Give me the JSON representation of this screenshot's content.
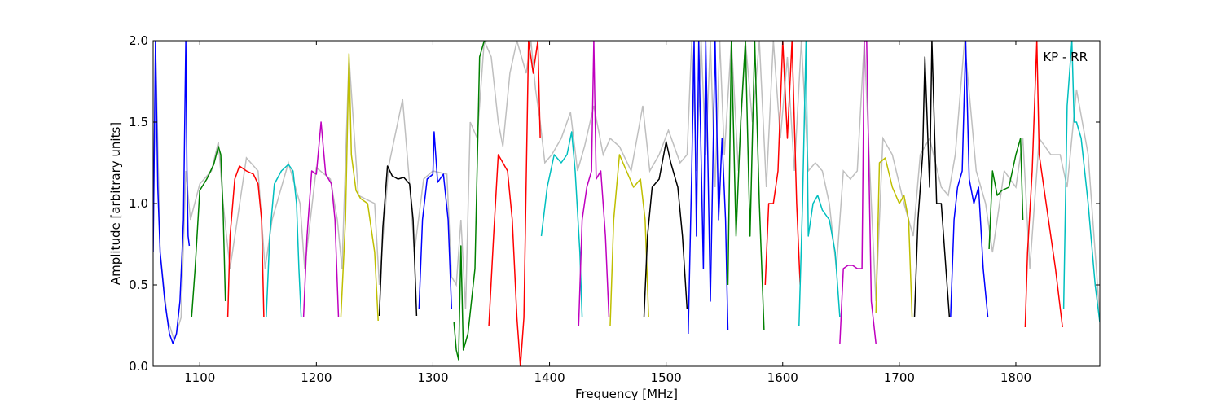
{
  "chart_data": {
    "type": "line",
    "title": "",
    "xlabel": "Frequency [MHz]",
    "ylabel": "Amplitude [arbitrary units]",
    "xlim": [
      1060,
      1872
    ],
    "ylim": [
      0.0,
      2.0
    ],
    "x_ticks": [
      1100,
      1200,
      1300,
      1400,
      1500,
      1600,
      1700,
      1800
    ],
    "y_ticks": [
      0.0,
      0.5,
      1.0,
      1.5,
      2.0
    ],
    "x_tick_labels": [
      "1100",
      "1200",
      "1300",
      "1400",
      "1500",
      "1600",
      "1700",
      "1800"
    ],
    "y_tick_labels": [
      "0.0",
      "0.5",
      "1.0",
      "1.5",
      "2.0"
    ],
    "grid": false,
    "annotation": "KP - RR",
    "background_color": "#bfbfbf",
    "color_cycle": [
      "#0000ff",
      "#008000",
      "#ff0000",
      "#00bfbf",
      "#bf00bf",
      "#bfbf00",
      "#000000"
    ],
    "series": [
      {
        "color": "#0000ff",
        "x": [
          1060,
          1062,
          1064,
          1066,
          1070,
          1074,
          1077,
          1080,
          1083,
          1086,
          1088,
          1089,
          1090,
          1091
        ],
        "y": [
          0.7,
          2.0,
          1.1,
          0.7,
          0.4,
          0.2,
          0.14,
          0.2,
          0.4,
          0.9,
          2.0,
          1.2,
          0.8,
          0.74
        ]
      },
      {
        "color": "#008000",
        "x": [
          1093,
          1096,
          1100,
          1106,
          1112,
          1116,
          1118,
          1120,
          1122
        ],
        "y": [
          0.3,
          0.6,
          1.08,
          1.15,
          1.24,
          1.35,
          1.3,
          0.95,
          0.4
        ]
      },
      {
        "color": "#ff0000",
        "x": [
          1124,
          1126,
          1130,
          1134,
          1140,
          1146,
          1150,
          1153,
          1155
        ],
        "y": [
          0.3,
          0.8,
          1.15,
          1.23,
          1.2,
          1.18,
          1.12,
          0.9,
          0.3
        ]
      },
      {
        "color": "#00bfbf",
        "x": [
          1157,
          1160,
          1164,
          1170,
          1176,
          1180,
          1183,
          1185,
          1187
        ],
        "y": [
          0.3,
          0.8,
          1.12,
          1.2,
          1.24,
          1.2,
          1.0,
          0.6,
          0.3
        ]
      },
      {
        "color": "#bf00bf",
        "x": [
          1189,
          1192,
          1196,
          1200,
          1204,
          1208,
          1213,
          1216,
          1219
        ],
        "y": [
          0.3,
          0.8,
          1.2,
          1.18,
          1.5,
          1.18,
          1.12,
          0.9,
          0.3
        ]
      },
      {
        "color": "#bfbf00",
        "x": [
          1221,
          1225,
          1228,
          1230,
          1234,
          1238,
          1244,
          1250,
          1253
        ],
        "y": [
          0.3,
          0.9,
          1.92,
          1.3,
          1.08,
          1.03,
          1.0,
          0.7,
          0.28
        ]
      },
      {
        "color": "#000000",
        "x": [
          1254,
          1257,
          1261,
          1265,
          1270,
          1275,
          1280,
          1283,
          1286
        ],
        "y": [
          0.31,
          0.85,
          1.23,
          1.17,
          1.15,
          1.16,
          1.12,
          0.9,
          0.31
        ]
      },
      {
        "color": "#0000ff",
        "x": [
          1288,
          1291,
          1295,
          1300,
          1301,
          1304,
          1309,
          1313,
          1316
        ],
        "y": [
          0.35,
          0.9,
          1.15,
          1.18,
          1.44,
          1.13,
          1.18,
          0.9,
          0.35
        ]
      },
      {
        "color": "#008000",
        "x": [
          1318,
          1320,
          1322,
          1324,
          1326,
          1330,
          1336,
          1340,
          1344,
          1346
        ],
        "y": [
          0.27,
          0.1,
          0.04,
          0.74,
          0.1,
          0.2,
          0.6,
          1.9,
          2.0,
          2.0
        ]
      },
      {
        "color": "#ff0000",
        "x": [
          1348,
          1352,
          1356,
          1360,
          1364,
          1368,
          1372,
          1375,
          1378,
          1382,
          1386,
          1390,
          1392
        ],
        "y": [
          0.25,
          0.8,
          1.3,
          1.25,
          1.2,
          0.9,
          0.3,
          0.0,
          0.3,
          2.0,
          1.8,
          2.0,
          1.4
        ]
      },
      {
        "color": "#00bfbf",
        "x": [
          1393,
          1398,
          1404,
          1410,
          1415,
          1419,
          1422,
          1426,
          1428
        ],
        "y": [
          0.8,
          1.1,
          1.3,
          1.25,
          1.3,
          1.44,
          1.2,
          0.7,
          0.3
        ]
      },
      {
        "color": "#bf00bf",
        "x": [
          1425,
          1428,
          1432,
          1436,
          1438,
          1440,
          1444,
          1448,
          1451
        ],
        "y": [
          0.25,
          0.9,
          1.1,
          1.2,
          2.0,
          1.15,
          1.2,
          0.8,
          0.3
        ]
      },
      {
        "color": "#bfbf00",
        "x": [
          1452,
          1455,
          1460,
          1466,
          1472,
          1478,
          1482,
          1485
        ],
        "y": [
          0.25,
          0.9,
          1.3,
          1.2,
          1.1,
          1.15,
          0.9,
          0.3
        ]
      },
      {
        "color": "#000000",
        "x": [
          1481,
          1484,
          1488,
          1494,
          1500,
          1504,
          1510,
          1514,
          1518
        ],
        "y": [
          0.3,
          0.8,
          1.1,
          1.15,
          1.38,
          1.25,
          1.1,
          0.8,
          0.35
        ]
      },
      {
        "color": "#0000ff",
        "x": [
          1519,
          1522,
          1524,
          1526,
          1528,
          1532,
          1534,
          1538,
          1542,
          1545,
          1548,
          1551,
          1553
        ],
        "y": [
          0.2,
          1.2,
          2.0,
          0.8,
          2.0,
          0.6,
          2.0,
          0.4,
          2.0,
          0.9,
          1.4,
          0.9,
          0.22
        ]
      },
      {
        "color": "#008000",
        "x": [
          1553,
          1556,
          1560,
          1564,
          1568,
          1572,
          1576,
          1580,
          1584
        ],
        "y": [
          0.5,
          2.0,
          0.8,
          1.5,
          2.0,
          0.8,
          2.0,
          1.0,
          0.22
        ]
      },
      {
        "color": "#ff0000",
        "x": [
          1585,
          1588,
          1592,
          1596,
          1600,
          1604,
          1608,
          1612,
          1615
        ],
        "y": [
          0.5,
          1.0,
          1.0,
          1.2,
          2.0,
          1.4,
          2.0,
          1.0,
          0.5
        ]
      },
      {
        "color": "#00bfbf",
        "x": [
          1614,
          1617,
          1620,
          1622,
          1626,
          1630,
          1634,
          1640,
          1645,
          1649
        ],
        "y": [
          0.25,
          1.0,
          2.0,
          0.8,
          1.0,
          1.05,
          0.96,
          0.9,
          0.7,
          0.3
        ]
      },
      {
        "color": "#bf00bf",
        "x": [
          1649,
          1652,
          1656,
          1660,
          1664,
          1668,
          1670,
          1672,
          1676,
          1680
        ],
        "y": [
          0.14,
          0.6,
          0.62,
          0.62,
          0.6,
          0.6,
          2.0,
          2.0,
          0.4,
          0.14
        ]
      },
      {
        "color": "#bfbf00",
        "x": [
          1680,
          1683,
          1688,
          1694,
          1700,
          1704,
          1708,
          1711
        ],
        "y": [
          0.33,
          1.25,
          1.28,
          1.1,
          1.0,
          1.05,
          0.9,
          0.3
        ]
      },
      {
        "color": "#000000",
        "x": [
          1713,
          1716,
          1720,
          1722,
          1726,
          1728,
          1732,
          1736,
          1740,
          1743
        ],
        "y": [
          0.3,
          0.9,
          1.3,
          1.9,
          1.1,
          2.0,
          1.0,
          1.0,
          0.6,
          0.3
        ]
      },
      {
        "color": "#0000ff",
        "x": [
          1744,
          1747,
          1750,
          1754,
          1757,
          1760,
          1764,
          1768,
          1772,
          1776
        ],
        "y": [
          0.3,
          0.9,
          1.1,
          1.2,
          2.0,
          1.15,
          1.0,
          1.1,
          0.6,
          0.3
        ]
      },
      {
        "color": "#008000",
        "x": [
          1777,
          1780,
          1784,
          1788,
          1794,
          1800,
          1804,
          1806
        ],
        "y": [
          0.72,
          1.2,
          1.05,
          1.08,
          1.1,
          1.3,
          1.4,
          0.9
        ]
      },
      {
        "color": "#ff0000",
        "x": [
          1808,
          1810,
          1814,
          1818,
          1820,
          1824,
          1828,
          1834,
          1840
        ],
        "y": [
          0.24,
          0.7,
          1.2,
          2.0,
          1.3,
          1.1,
          0.9,
          0.6,
          0.24
        ]
      },
      {
        "color": "#00bfbf",
        "x": [
          1841,
          1844,
          1848,
          1850,
          1852,
          1856,
          1862,
          1868,
          1872
        ],
        "y": [
          0.35,
          1.6,
          2.0,
          1.5,
          1.5,
          1.4,
          1.0,
          0.5,
          0.27
        ]
      }
    ],
    "background_trace": {
      "x": [
        1060,
        1062,
        1066,
        1072,
        1078,
        1084,
        1088,
        1092,
        1100,
        1110,
        1116,
        1120,
        1126,
        1140,
        1150,
        1156,
        1162,
        1176,
        1186,
        1190,
        1200,
        1212,
        1218,
        1222,
        1228,
        1236,
        1250,
        1254,
        1262,
        1274,
        1280,
        1284,
        1292,
        1300,
        1312,
        1316,
        1320,
        1324,
        1328,
        1332,
        1338,
        1344,
        1350,
        1356,
        1360,
        1366,
        1372,
        1376,
        1380,
        1384,
        1388,
        1392,
        1396,
        1402,
        1410,
        1418,
        1424,
        1430,
        1438,
        1446,
        1452,
        1460,
        1470,
        1480,
        1486,
        1494,
        1502,
        1512,
        1518,
        1522,
        1526,
        1530,
        1534,
        1538,
        1542,
        1546,
        1550,
        1556,
        1562,
        1568,
        1574,
        1580,
        1586,
        1592,
        1598,
        1604,
        1610,
        1616,
        1622,
        1628,
        1634,
        1640,
        1646,
        1652,
        1658,
        1664,
        1670,
        1676,
        1680,
        1686,
        1694,
        1704,
        1712,
        1718,
        1726,
        1736,
        1742,
        1748,
        1756,
        1766,
        1774,
        1780,
        1790,
        1800,
        1806,
        1812,
        1820,
        1830,
        1838,
        1844,
        1852,
        1862,
        1872
      ],
      "y": [
        0.7,
        2.0,
        0.7,
        0.3,
        0.16,
        0.3,
        1.2,
        0.9,
        1.12,
        1.2,
        1.38,
        1.0,
        0.6,
        1.28,
        1.2,
        0.6,
        0.9,
        1.25,
        1.0,
        0.6,
        1.22,
        1.15,
        0.9,
        0.6,
        1.9,
        1.05,
        1.0,
        0.5,
        1.23,
        1.64,
        1.12,
        0.7,
        1.15,
        1.2,
        1.18,
        0.55,
        0.5,
        0.9,
        0.35,
        1.5,
        1.4,
        2.0,
        1.9,
        1.5,
        1.35,
        1.8,
        2.0,
        1.9,
        1.8,
        2.0,
        1.7,
        1.5,
        1.25,
        1.3,
        1.4,
        1.56,
        1.2,
        1.35,
        1.6,
        1.3,
        1.4,
        1.35,
        1.2,
        1.6,
        1.2,
        1.3,
        1.45,
        1.25,
        1.3,
        2.0,
        1.2,
        2.0,
        1.3,
        2.0,
        1.1,
        2.0,
        1.3,
        2.0,
        1.2,
        2.0,
        1.5,
        2.0,
        1.1,
        2.0,
        1.4,
        1.9,
        1.2,
        2.0,
        1.2,
        1.25,
        1.2,
        1.0,
        0.6,
        1.2,
        1.15,
        1.2,
        2.0,
        1.0,
        0.4,
        1.4,
        1.3,
        1.0,
        0.8,
        1.3,
        1.4,
        1.1,
        1.05,
        1.3,
        2.0,
        1.2,
        1.0,
        0.7,
        1.2,
        1.1,
        1.4,
        0.6,
        1.4,
        1.3,
        1.3,
        1.1,
        1.7,
        1.3,
        0.3
      ]
    }
  }
}
